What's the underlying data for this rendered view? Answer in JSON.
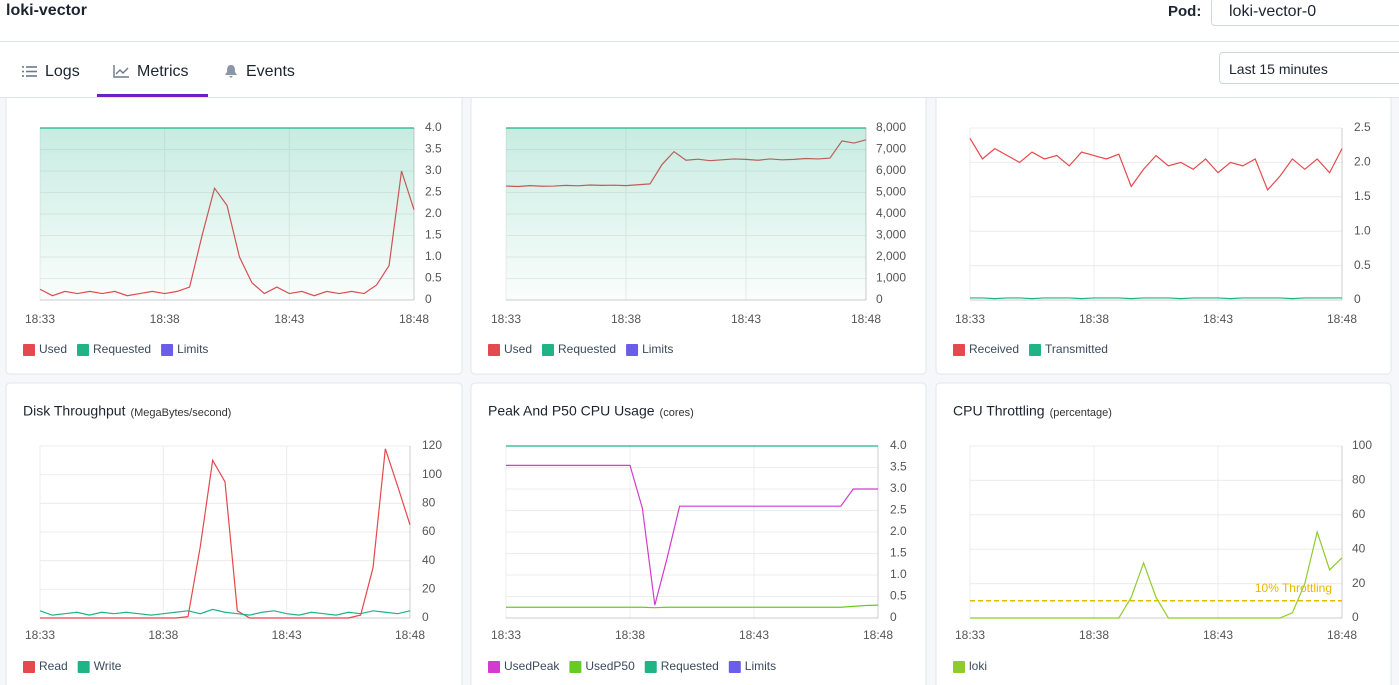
{
  "header": {
    "title": "loki-vector",
    "pod_label": "Pod:",
    "pod": "loki-vector-0"
  },
  "tabs": [
    "Logs",
    "Metrics",
    "Events"
  ],
  "time_range": "Last 15 minutes",
  "chart_data": [
    {
      "type": "line",
      "grid": true,
      "categories": [
        "18:33",
        null,
        null,
        null,
        null,
        null,
        null,
        null,
        null,
        null,
        "18:38",
        null,
        null,
        null,
        null,
        null,
        null,
        null,
        null,
        null,
        "18:43",
        null,
        null,
        null,
        null,
        null,
        null,
        null,
        null,
        null,
        "18:48"
      ],
      "ylim": [
        0,
        4
      ],
      "yticks": [
        0,
        0.5,
        {
          "value": 1,
          "label": "1.0"
        },
        1.5,
        {
          "value": 2,
          "label": "2.0"
        },
        2.5,
        {
          "value": 3,
          "label": "3.0"
        },
        3.5,
        {
          "value": 4,
          "label": "4.0"
        }
      ],
      "series": [
        {
          "name": "Used",
          "color": "#e5484d",
          "values": [
            0.25,
            0.1,
            0.2,
            0.15,
            0.2,
            0.15,
            0.2,
            0.1,
            0.15,
            0.2,
            0.15,
            0.2,
            0.3,
            1.5,
            2.6,
            2.2,
            1.0,
            0.4,
            0.15,
            0.3,
            0.15,
            0.2,
            0.1,
            0.2,
            0.15,
            0.2,
            0.15,
            0.35,
            0.8,
            3.0,
            2.1
          ]
        },
        {
          "name": "Requested",
          "color": "#1fb386",
          "area": true,
          "values": [
            4,
            4,
            4,
            4,
            4,
            4,
            4,
            4,
            4,
            4,
            4,
            4,
            4,
            4,
            4,
            4,
            4,
            4,
            4,
            4,
            4,
            4,
            4,
            4,
            4,
            4,
            4,
            4,
            4,
            4,
            4
          ]
        },
        {
          "name": "Limits",
          "color": "#6a5ee8",
          "values": [
            null,
            null,
            null,
            null,
            null,
            null,
            null,
            null,
            null,
            null,
            null,
            null,
            null,
            null,
            null,
            null,
            null,
            null,
            null,
            null,
            null,
            null,
            null,
            null,
            null,
            null,
            null,
            null,
            null,
            null,
            null
          ]
        }
      ]
    },
    {
      "type": "line",
      "grid": true,
      "categories": [
        "18:33",
        null,
        null,
        null,
        null,
        null,
        null,
        null,
        null,
        null,
        "18:38",
        null,
        null,
        null,
        null,
        null,
        null,
        null,
        null,
        null,
        "18:43",
        null,
        null,
        null,
        null,
        null,
        null,
        null,
        null,
        null,
        "18:48"
      ],
      "ylim": [
        0,
        8000
      ],
      "yticks": [
        0,
        {
          "value": 1000,
          "label": "1,000"
        },
        {
          "value": 2000,
          "label": "2,000"
        },
        {
          "value": 3000,
          "label": "3,000"
        },
        {
          "value": 4000,
          "label": "4,000"
        },
        {
          "value": 5000,
          "label": "5,000"
        },
        {
          "value": 6000,
          "label": "6,000"
        },
        {
          "value": 7000,
          "label": "7,000"
        },
        {
          "value": 8000,
          "label": "8,000"
        }
      ],
      "series": [
        {
          "name": "Used",
          "color": "#e5484d",
          "values": [
            5300,
            5280,
            5320,
            5290,
            5300,
            5330,
            5310,
            5350,
            5330,
            5340,
            5320,
            5360,
            5400,
            6300,
            6900,
            6500,
            6550,
            6480,
            6520,
            6560,
            6540,
            6500,
            6560,
            6520,
            6540,
            6580,
            6560,
            6600,
            7400,
            7300,
            7450
          ]
        },
        {
          "name": "Requested",
          "color": "#1fb386",
          "area": true,
          "values": [
            8000,
            8000,
            8000,
            8000,
            8000,
            8000,
            8000,
            8000,
            8000,
            8000,
            8000,
            8000,
            8000,
            8000,
            8000,
            8000,
            8000,
            8000,
            8000,
            8000,
            8000,
            8000,
            8000,
            8000,
            8000,
            8000,
            8000,
            8000,
            8000,
            8000,
            8000
          ]
        },
        {
          "name": "Limits",
          "color": "#6a5ee8",
          "values": [
            null,
            null,
            null,
            null,
            null,
            null,
            null,
            null,
            null,
            null,
            null,
            null,
            null,
            null,
            null,
            null,
            null,
            null,
            null,
            null,
            null,
            null,
            null,
            null,
            null,
            null,
            null,
            null,
            null,
            null,
            null
          ]
        }
      ]
    },
    {
      "type": "line",
      "grid": true,
      "categories": [
        "18:33",
        null,
        null,
        null,
        null,
        null,
        null,
        null,
        null,
        null,
        "18:38",
        null,
        null,
        null,
        null,
        null,
        null,
        null,
        null,
        null,
        "18:43",
        null,
        null,
        null,
        null,
        null,
        null,
        null,
        null,
        null,
        "18:48"
      ],
      "ylim": [
        0,
        2.5
      ],
      "yticks": [
        0,
        0.5,
        {
          "value": 1,
          "label": "1.0"
        },
        1.5,
        {
          "value": 2,
          "label": "2.0"
        },
        2.5
      ],
      "series": [
        {
          "name": "Received",
          "color": "#e5484d",
          "values": [
            2.35,
            2.05,
            2.2,
            2.1,
            2.0,
            2.15,
            2.05,
            2.1,
            1.95,
            2.15,
            2.1,
            2.05,
            2.12,
            1.65,
            1.9,
            2.1,
            1.95,
            2.0,
            1.9,
            2.05,
            1.85,
            2.0,
            1.95,
            2.05,
            1.6,
            1.8,
            2.05,
            1.9,
            2.05,
            1.85,
            2.2
          ]
        },
        {
          "name": "Transmitted",
          "color": "#1fb386",
          "values": [
            0.03,
            0.03,
            0.02,
            0.03,
            0.03,
            0.02,
            0.03,
            0.03,
            0.03,
            0.02,
            0.03,
            0.03,
            0.03,
            0.02,
            0.03,
            0.03,
            0.03,
            0.02,
            0.03,
            0.03,
            0.03,
            0.02,
            0.03,
            0.03,
            0.03,
            0.03,
            0.02,
            0.03,
            0.03,
            0.03,
            0.03
          ]
        }
      ]
    },
    {
      "type": "line",
      "grid": true,
      "title": "Disk Throughput",
      "subtitle": "(MegaBytes/second)",
      "categories": [
        "18:33",
        null,
        null,
        null,
        null,
        null,
        null,
        null,
        null,
        null,
        "18:38",
        null,
        null,
        null,
        null,
        null,
        null,
        null,
        null,
        null,
        "18:43",
        null,
        null,
        null,
        null,
        null,
        null,
        null,
        null,
        null,
        "18:48"
      ],
      "ylim": [
        0,
        120
      ],
      "yticks": [
        0,
        20,
        40,
        60,
        80,
        100,
        120
      ],
      "series": [
        {
          "name": "Read",
          "color": "#e5484d",
          "values": [
            0,
            0,
            0,
            0,
            0,
            0,
            0,
            0,
            0,
            0,
            0,
            0,
            1,
            50,
            110,
            95,
            5,
            0,
            0,
            0,
            0,
            0,
            0,
            0,
            0,
            0,
            2,
            35,
            118,
            92,
            65
          ]
        },
        {
          "name": "Write",
          "color": "#1fb386",
          "values": [
            5,
            2,
            3,
            4,
            2,
            4,
            3,
            4,
            3,
            2,
            3,
            4,
            5,
            3,
            6,
            4,
            3,
            2,
            4,
            5,
            3,
            2,
            4,
            3,
            2,
            4,
            3,
            5,
            4,
            3,
            5
          ]
        }
      ]
    },
    {
      "type": "line",
      "grid": true,
      "title": "Peak And P50 CPU Usage",
      "subtitle": "(cores)",
      "categories": [
        "18:33",
        null,
        null,
        null,
        null,
        null,
        null,
        null,
        null,
        null,
        "18:38",
        null,
        null,
        null,
        null,
        null,
        null,
        null,
        null,
        null,
        "18:43",
        null,
        null,
        null,
        null,
        null,
        null,
        null,
        null,
        null,
        "18:48"
      ],
      "ylim": [
        0,
        4
      ],
      "yticks": [
        0,
        0.5,
        {
          "value": 1,
          "label": "1.0"
        },
        1.5,
        {
          "value": 2,
          "label": "2.0"
        },
        2.5,
        {
          "value": 3,
          "label": "3.0"
        },
        3.5,
        {
          "value": 4,
          "label": "4.0"
        }
      ],
      "series": [
        {
          "name": "UsedPeak",
          "color": "#d23bd0",
          "values": [
            3.55,
            3.55,
            3.55,
            3.55,
            3.55,
            3.55,
            3.55,
            3.55,
            3.55,
            3.55,
            3.55,
            2.55,
            0.3,
            1.4,
            2.6,
            2.6,
            2.6,
            2.6,
            2.6,
            2.6,
            2.6,
            2.6,
            2.6,
            2.6,
            2.6,
            2.6,
            2.6,
            2.6,
            3.0,
            3.0,
            3.0
          ]
        },
        {
          "name": "UsedP50",
          "color": "#66cc22",
          "values": [
            0.25,
            0.25,
            0.25,
            0.25,
            0.25,
            0.25,
            0.25,
            0.25,
            0.25,
            0.25,
            0.25,
            0.25,
            0.24,
            0.25,
            0.25,
            0.25,
            0.25,
            0.25,
            0.25,
            0.25,
            0.25,
            0.25,
            0.25,
            0.25,
            0.25,
            0.25,
            0.25,
            0.25,
            0.27,
            0.29,
            0.3
          ]
        },
        {
          "name": "Requested",
          "color": "#1fb386",
          "values": [
            4,
            4,
            4,
            4,
            4,
            4,
            4,
            4,
            4,
            4,
            4,
            4,
            4,
            4,
            4,
            4,
            4,
            4,
            4,
            4,
            4,
            4,
            4,
            4,
            4,
            4,
            4,
            4,
            4,
            4,
            4
          ]
        },
        {
          "name": "Limits",
          "color": "#6a5ee8",
          "values": [
            null,
            null,
            null,
            null,
            null,
            null,
            null,
            null,
            null,
            null,
            null,
            null,
            null,
            null,
            null,
            null,
            null,
            null,
            null,
            null,
            null,
            null,
            null,
            null,
            null,
            null,
            null,
            null,
            null,
            null,
            null
          ]
        }
      ]
    },
    {
      "type": "line",
      "grid": true,
      "title": "CPU Throttling",
      "subtitle": "(percentage)",
      "categories": [
        "18:33",
        null,
        null,
        null,
        null,
        null,
        null,
        null,
        null,
        null,
        "18:38",
        null,
        null,
        null,
        null,
        null,
        null,
        null,
        null,
        null,
        "18:43",
        null,
        null,
        null,
        null,
        null,
        null,
        null,
        null,
        null,
        "18:48"
      ],
      "ylim": [
        0,
        100
      ],
      "yticks": [
        0,
        20,
        40,
        60,
        80,
        100
      ],
      "annotation": {
        "text": "10% Throttling",
        "value": 10,
        "color": "#e6b800"
      },
      "series": [
        {
          "name": "loki",
          "color": "#8fcc2a",
          "values": [
            0,
            0,
            0,
            0,
            0,
            0,
            0,
            0,
            0,
            0,
            0,
            0,
            0,
            12,
            32,
            12,
            0,
            0,
            0,
            0,
            0,
            0,
            0,
            0,
            0,
            0,
            3,
            20,
            50,
            28,
            35
          ]
        }
      ]
    }
  ]
}
